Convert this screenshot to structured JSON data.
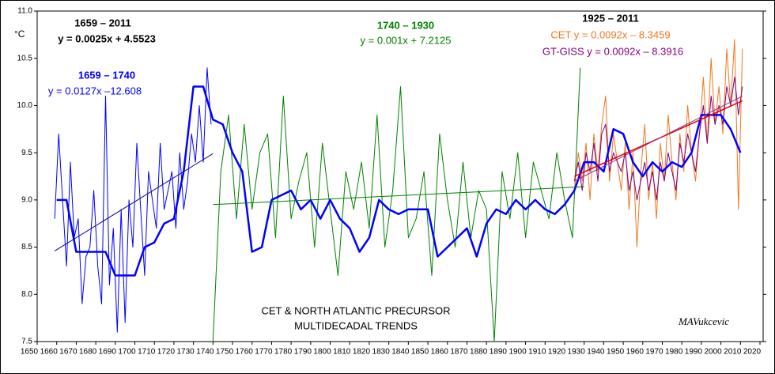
{
  "chart_data": {
    "type": "line",
    "y_unit": "°C",
    "xlim": [
      1650,
      2020
    ],
    "xticks": [
      1650,
      1660,
      1670,
      1680,
      1690,
      1700,
      1710,
      1720,
      1730,
      1740,
      1750,
      1760,
      1770,
      1780,
      1790,
      1800,
      1810,
      1820,
      1830,
      1840,
      1850,
      1860,
      1870,
      1880,
      1890,
      1900,
      1910,
      1920,
      1930,
      1940,
      1950,
      1960,
      1970,
      1980,
      1990,
      2000,
      2010,
      2020
    ],
    "ylim": [
      7.5,
      11.0
    ],
    "yticks": [
      7.5,
      {
        "value": 8,
        "label": "8.0"
      },
      8.5,
      {
        "value": 9,
        "label": "9.0"
      },
      9.5,
      {
        "value": 10,
        "label": "10.0"
      },
      10.5,
      {
        "value": 11,
        "label": "11.0"
      }
    ],
    "series": [
      {
        "color": "#0000ff",
        "width": 1,
        "x": [
          1659,
          1661,
          1663,
          1665,
          1667,
          1669,
          1671,
          1673,
          1675,
          1677,
          1679,
          1681,
          1683,
          1685,
          1687,
          1689,
          1691,
          1693,
          1695,
          1697,
          1699,
          1701,
          1703,
          1705,
          1707,
          1709,
          1711,
          1713,
          1715,
          1717,
          1719,
          1721,
          1723,
          1725,
          1727,
          1729,
          1731,
          1733,
          1735,
          1737,
          1739
        ],
        "values": [
          8.8,
          9.7,
          9.0,
          8.3,
          9.4,
          8.6,
          8.8,
          7.9,
          8.4,
          8.5,
          9.1,
          8.3,
          7.9,
          10.1,
          8.1,
          8.7,
          7.6,
          8.9,
          7.7,
          9.0,
          8.5,
          9.6,
          8.9,
          8.2,
          9.3,
          9.0,
          8.7,
          9.6,
          8.9,
          9.1,
          9.3,
          8.7,
          9.5,
          8.9,
          9.2,
          9.7,
          9.4,
          10.0,
          9.4,
          10.4,
          9.8
        ]
      },
      {
        "color": "#008000",
        "width": 1,
        "x": [
          1740,
          1744,
          1748,
          1752,
          1756,
          1760,
          1764,
          1768,
          1772,
          1776,
          1780,
          1784,
          1788,
          1792,
          1796,
          1800,
          1804,
          1808,
          1812,
          1816,
          1820,
          1824,
          1828,
          1832,
          1836,
          1840,
          1844,
          1848,
          1852,
          1856,
          1860,
          1864,
          1868,
          1872,
          1876,
          1880,
          1884,
          1888,
          1892,
          1896,
          1900,
          1904,
          1908,
          1912,
          1916,
          1920,
          1924,
          1928
        ],
        "values": [
          7.5,
          9.3,
          9.9,
          8.8,
          9.8,
          8.9,
          9.5,
          9.7,
          8.6,
          10.1,
          8.8,
          9.2,
          9.5,
          8.5,
          9.6,
          8.9,
          8.2,
          9.3,
          8.9,
          9.4,
          8.7,
          9.9,
          8.5,
          9.1,
          10.2,
          8.6,
          8.8,
          9.3,
          8.2,
          9.7,
          9.0,
          8.5,
          9.4,
          8.6,
          9.1,
          8.9,
          7.5,
          9.3,
          8.8,
          9.5,
          8.6,
          9.4,
          9.1,
          8.8,
          9.5,
          9.0,
          8.6,
          10.4
        ]
      },
      {
        "name": "CET",
        "color": "#f07820",
        "width": 1,
        "x": [
          1925,
          1927,
          1929,
          1931,
          1933,
          1935,
          1937,
          1939,
          1941,
          1943,
          1945,
          1947,
          1949,
          1951,
          1953,
          1955,
          1957,
          1959,
          1961,
          1963,
          1965,
          1967,
          1969,
          1971,
          1973,
          1975,
          1977,
          1979,
          1981,
          1983,
          1985,
          1987,
          1989,
          1991,
          1993,
          1995,
          1997,
          1999,
          2001,
          2003,
          2005,
          2007,
          2009,
          2011
        ],
        "values": [
          9.1,
          9.5,
          9.2,
          9.6,
          9.0,
          9.7,
          9.3,
          9.8,
          10.1,
          9.2,
          9.7,
          9.4,
          9.1,
          9.6,
          8.9,
          9.5,
          8.5,
          9.3,
          9.8,
          9.0,
          9.4,
          8.8,
          9.6,
          9.2,
          9.9,
          9.4,
          9.0,
          9.7,
          9.3,
          10.0,
          9.5,
          9.2,
          9.7,
          10.3,
          9.6,
          10.5,
          9.8,
          10.2,
          9.7,
          10.6,
          10.0,
          10.7,
          8.9,
          10.6
        ]
      },
      {
        "name": "GT-GISS",
        "color": "#800080",
        "width": 1,
        "x": [
          1925,
          1927,
          1929,
          1931,
          1933,
          1935,
          1937,
          1939,
          1941,
          1943,
          1945,
          1947,
          1949,
          1951,
          1953,
          1955,
          1957,
          1959,
          1961,
          1963,
          1965,
          1967,
          1969,
          1971,
          1973,
          1975,
          1977,
          1979,
          1981,
          1983,
          1985,
          1987,
          1989,
          1991,
          1993,
          1995,
          1997,
          1999,
          2001,
          2003,
          2005,
          2007,
          2009,
          2011
        ],
        "values": [
          9.2,
          9.4,
          9.1,
          9.5,
          9.3,
          9.6,
          9.2,
          9.7,
          9.8,
          9.3,
          9.5,
          9.4,
          9.3,
          9.5,
          9.1,
          9.3,
          9.0,
          9.2,
          9.4,
          9.1,
          9.3,
          9.0,
          9.4,
          9.2,
          9.5,
          9.3,
          9.1,
          9.6,
          9.4,
          9.7,
          9.5,
          9.3,
          9.7,
          10.0,
          9.6,
          10.1,
          9.8,
          10.0,
          9.8,
          10.2,
          10.0,
          10.3,
          9.9,
          10.2
        ]
      },
      {
        "color": "#0000ff",
        "width": 2.5,
        "x": [
          1660,
          1665,
          1670,
          1675,
          1680,
          1685,
          1690,
          1695,
          1700,
          1705,
          1710,
          1715,
          1720,
          1725,
          1730,
          1735,
          1740,
          1745,
          1750,
          1755,
          1760,
          1765,
          1770,
          1775,
          1780,
          1785,
          1790,
          1795,
          1800,
          1805,
          1810,
          1815,
          1820,
          1825,
          1830,
          1835,
          1840,
          1845,
          1850,
          1855,
          1860,
          1865,
          1870,
          1875,
          1880,
          1885,
          1890,
          1895,
          1900,
          1905,
          1910,
          1915,
          1920,
          1925,
          1930,
          1935,
          1940,
          1945,
          1950,
          1955,
          1960,
          1965,
          1970,
          1975,
          1980,
          1985,
          1990,
          1995,
          2000,
          2005,
          2010
        ],
        "values": [
          9.0,
          9.0,
          8.45,
          8.45,
          8.45,
          8.45,
          8.2,
          8.2,
          8.2,
          8.5,
          8.55,
          8.75,
          8.8,
          9.3,
          10.2,
          10.2,
          9.85,
          9.8,
          9.5,
          9.3,
          8.45,
          8.5,
          9.0,
          9.05,
          9.1,
          8.9,
          9.0,
          8.8,
          9.0,
          8.8,
          8.7,
          8.45,
          8.6,
          9.0,
          8.9,
          8.85,
          8.9,
          8.9,
          8.9,
          8.4,
          8.5,
          8.6,
          8.7,
          8.4,
          8.75,
          8.9,
          8.85,
          9.0,
          8.9,
          9.0,
          8.9,
          8.85,
          8.95,
          9.1,
          9.4,
          9.4,
          9.3,
          9.75,
          9.7,
          9.4,
          9.25,
          9.4,
          9.3,
          9.4,
          9.35,
          9.5,
          9.9,
          9.9,
          9.9,
          9.75,
          9.5
        ]
      },
      {
        "color": "#0000a0",
        "width": 1,
        "x": [
          1659,
          1740
        ],
        "values": [
          8.46,
          9.49
        ]
      },
      {
        "color": "#008000",
        "width": 1,
        "x": [
          1740,
          1930
        ],
        "values": [
          8.95,
          9.14
        ]
      },
      {
        "color": "#e00000",
        "width": 1.5,
        "x": [
          1925,
          2011
        ],
        "values": [
          9.25,
          10.05
        ]
      },
      {
        "color": "#a03080",
        "width": 1,
        "x": [
          1925,
          2011
        ],
        "values": [
          9.2,
          10.1
        ]
      }
    ],
    "annotations": [
      {
        "text": "1659 – 2011",
        "color": "#000000",
        "bold": true
      },
      {
        "text": "y = 0.0025x + 4.5523",
        "color": "#000000",
        "bold": true
      },
      {
        "text": "1659 – 1740",
        "color": "#0000ff",
        "bold": true
      },
      {
        "text": "y = 0.0127x –12.608",
        "color": "#0000ff",
        "bold": false
      },
      {
        "text": "1740 – 1930",
        "color": "#008000",
        "bold": true
      },
      {
        "text": "y = 0.001x + 7.2125",
        "color": "#008000",
        "bold": false
      },
      {
        "text": "1925 – 2011",
        "color": "#000000",
        "bold": true
      },
      {
        "text": "CET   y = 0.0092x – 8.3459",
        "color": "#f07820",
        "bold": false
      },
      {
        "text": "GT-GISS  y = 0.0092x – 8.3916",
        "color": "#800080",
        "bold": false
      },
      {
        "text": "CET  & NORTH ATLANTIC PRECURSOR",
        "color": "#000000",
        "bold": false
      },
      {
        "text": "MULTIDECADAL TRENDS",
        "color": "#000000",
        "bold": false
      },
      {
        "text": "MAVukcevic",
        "color": "#000000",
        "bold": false
      }
    ]
  }
}
